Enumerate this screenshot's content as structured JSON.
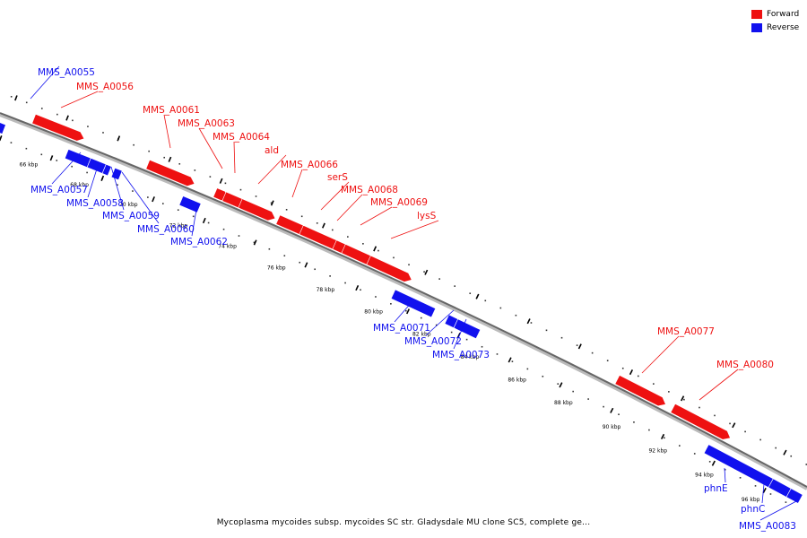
{
  "legend": {
    "forward_label": "Forward",
    "reverse_label": "Reverse",
    "forward_color": "#ee1111",
    "reverse_color": "#1111ee"
  },
  "caption": "Mycoplasma mycoides subsp. mycoides SC str. Gladysdale MU clone SC5, complete ge...",
  "ticks": [
    "66 kbp",
    "68 kbp",
    "70 kbp",
    "72 kbp",
    "74 kbp",
    "76 kbp",
    "78 kbp",
    "80 kbp",
    "82 kbp",
    "84 kbp",
    "86 kbp",
    "88 kbp",
    "90 kbp",
    "92 kbp",
    "94 kbp",
    "96 kbp"
  ],
  "genes": [
    {
      "name": "MMS_A0055",
      "strand": "reverse"
    },
    {
      "name": "MMS_A0056",
      "strand": "forward"
    },
    {
      "name": "MMS_A0057",
      "strand": "reverse"
    },
    {
      "name": "MMS_A0058",
      "strand": "reverse"
    },
    {
      "name": "MMS_A0059",
      "strand": "reverse"
    },
    {
      "name": "MMS_A0060",
      "strand": "reverse"
    },
    {
      "name": "MMS_A0061",
      "strand": "forward"
    },
    {
      "name": "MMS_A0062",
      "strand": "reverse"
    },
    {
      "name": "MMS_A0063",
      "strand": "forward"
    },
    {
      "name": "MMS_A0064",
      "strand": "forward"
    },
    {
      "name": "ald",
      "strand": "forward"
    },
    {
      "name": "MMS_A0066",
      "strand": "forward"
    },
    {
      "name": "serS",
      "strand": "forward"
    },
    {
      "name": "MMS_A0068",
      "strand": "forward"
    },
    {
      "name": "MMS_A0069",
      "strand": "forward"
    },
    {
      "name": "lysS",
      "strand": "forward"
    },
    {
      "name": "MMS_A0071",
      "strand": "reverse"
    },
    {
      "name": "MMS_A0072",
      "strand": "reverse"
    },
    {
      "name": "MMS_A0073",
      "strand": "reverse"
    },
    {
      "name": "MMS_A0077",
      "strand": "forward"
    },
    {
      "name": "MMS_A0080",
      "strand": "forward"
    },
    {
      "name": "phnE",
      "strand": "reverse"
    },
    {
      "name": "phnC",
      "strand": "reverse"
    },
    {
      "name": "MMS_A0083",
      "strand": "reverse"
    }
  ]
}
